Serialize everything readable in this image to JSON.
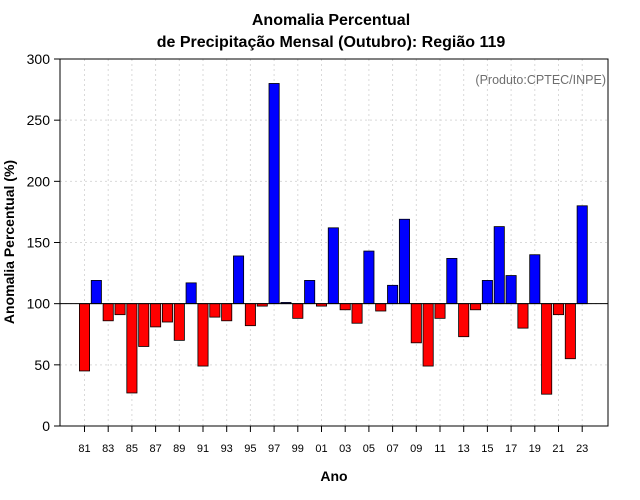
{
  "chart_data": {
    "type": "bar",
    "title_line1": "Anomalia Percentual",
    "title_line2": "de Precipitação Mensal (Outubro): Região 119",
    "xlabel": "Ano",
    "ylabel": "Anomalia Percentual (%)",
    "credit": "(Produto:CPTEC/INPE)",
    "baseline": 100,
    "ylim": [
      0,
      300
    ],
    "yticks": [
      "0",
      "50",
      "100",
      "150",
      "200",
      "250",
      "300"
    ],
    "ytick_values": [
      0,
      50,
      100,
      150,
      200,
      250,
      300
    ],
    "xtick_labels": [
      "81",
      "83",
      "85",
      "87",
      "89",
      "91",
      "93",
      "95",
      "97",
      "99",
      "01",
      "03",
      "05",
      "07",
      "09",
      "11",
      "13",
      "15",
      "17",
      "19",
      "21",
      "23"
    ],
    "categories": [
      "81",
      "82",
      "83",
      "84",
      "85",
      "86",
      "87",
      "88",
      "89",
      "90",
      "91",
      "92",
      "93",
      "94",
      "95",
      "96",
      "97",
      "98",
      "99",
      "00",
      "01",
      "02",
      "03",
      "04",
      "05",
      "06",
      "07",
      "08",
      "09",
      "10",
      "11",
      "12",
      "13",
      "14",
      "15",
      "16",
      "17",
      "18",
      "19",
      "20",
      "21",
      "22",
      "23"
    ],
    "values": [
      45,
      119,
      86,
      91,
      27,
      65,
      81,
      85,
      70,
      117,
      49,
      89,
      86,
      139,
      82,
      98,
      280,
      101,
      88,
      119,
      98,
      162,
      95,
      84,
      143,
      94,
      115,
      169,
      68,
      49,
      88,
      137,
      73,
      95,
      119,
      163,
      123,
      80,
      140,
      26,
      91,
      55,
      180
    ],
    "colors": {
      "above": "#0000ff",
      "below": "#ff0000",
      "outline": "#000000"
    }
  }
}
